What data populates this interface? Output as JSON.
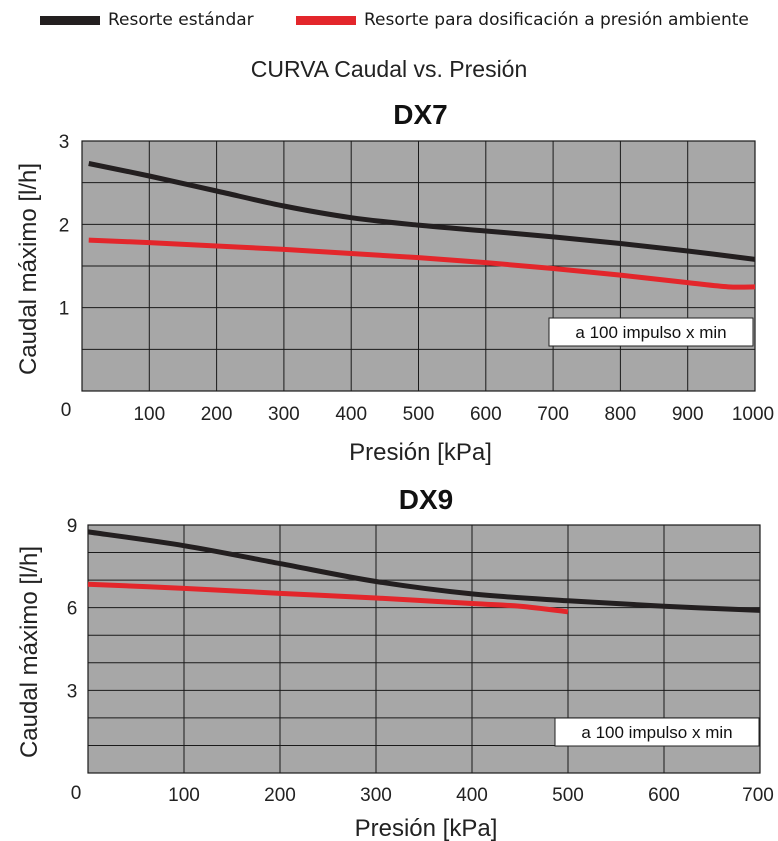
{
  "legend": {
    "items": [
      {
        "label": "Resorte estándar",
        "color": "#231f20"
      },
      {
        "label": "Resorte para dosificación a presión ambiente",
        "color": "#e3262b"
      }
    ]
  },
  "suptitle": "CURVA Caudal vs. Presión",
  "colors": {
    "plot_background": "#a7a7a7",
    "grid": "#1a1a1a",
    "standard_spring": "#231f20",
    "ambient_spring": "#e3262b"
  },
  "chart_data": [
    {
      "type": "line",
      "title": "DX7",
      "xlabel": "Presión [kPa]",
      "ylabel": "Caudal máximo [l/h]",
      "xlim": [
        0,
        1000
      ],
      "ylim": [
        0,
        3
      ],
      "xticks": [
        0,
        100,
        200,
        300,
        400,
        500,
        600,
        700,
        800,
        900,
        1000
      ],
      "xtick_labels": [
        "0",
        "100",
        "200",
        "300",
        "400",
        "500",
        "600",
        "700",
        "800",
        "900",
        "1000"
      ],
      "yticks": [
        1,
        2,
        3
      ],
      "ytick_labels": [
        "1",
        "2",
        "3"
      ],
      "grid": true,
      "minor_y_gridlines": [
        0.5,
        1.5,
        2.5
      ],
      "annotation": "a 100 impulso x min",
      "series": [
        {
          "name": "Resorte estándar",
          "color": "#231f20",
          "x": [
            10,
            100,
            200,
            300,
            400,
            500,
            600,
            700,
            800,
            900,
            1000
          ],
          "y": [
            2.73,
            2.58,
            2.4,
            2.22,
            2.08,
            1.99,
            1.92,
            1.85,
            1.77,
            1.68,
            1.58
          ]
        },
        {
          "name": "Resorte para dosificación a presión ambiente",
          "color": "#e3262b",
          "x": [
            10,
            100,
            200,
            300,
            400,
            500,
            600,
            700,
            800,
            900,
            960,
            1000
          ],
          "y": [
            1.81,
            1.78,
            1.74,
            1.7,
            1.65,
            1.6,
            1.54,
            1.47,
            1.39,
            1.3,
            1.25,
            1.25
          ]
        }
      ]
    },
    {
      "type": "line",
      "title": "DX9",
      "xlabel": "Presión [kPa]",
      "ylabel": "Caudal máximo [l/h]",
      "xlim": [
        0,
        700
      ],
      "ylim": [
        0,
        9
      ],
      "xticks": [
        0,
        100,
        200,
        300,
        400,
        500,
        600,
        700
      ],
      "xtick_labels": [
        "0",
        "100",
        "200",
        "300",
        "400",
        "500",
        "600",
        "700"
      ],
      "yticks": [
        3,
        6,
        9
      ],
      "ytick_labels": [
        "3",
        "6",
        "9"
      ],
      "grid": true,
      "minor_y_gridlines": [
        1,
        2,
        4,
        5,
        7,
        8
      ],
      "annotation": "a 100 impulso x min",
      "series": [
        {
          "name": "Resorte estándar",
          "color": "#231f20",
          "x": [
            0,
            100,
            200,
            300,
            400,
            500,
            600,
            700
          ],
          "y": [
            8.75,
            8.25,
            7.6,
            6.95,
            6.5,
            6.25,
            6.05,
            5.9
          ]
        },
        {
          "name": "Resorte para dosificación a presión ambiente",
          "color": "#e3262b",
          "x": [
            0,
            100,
            200,
            300,
            400,
            450,
            500
          ],
          "y": [
            6.85,
            6.7,
            6.52,
            6.35,
            6.15,
            6.05,
            5.85
          ]
        }
      ]
    }
  ]
}
